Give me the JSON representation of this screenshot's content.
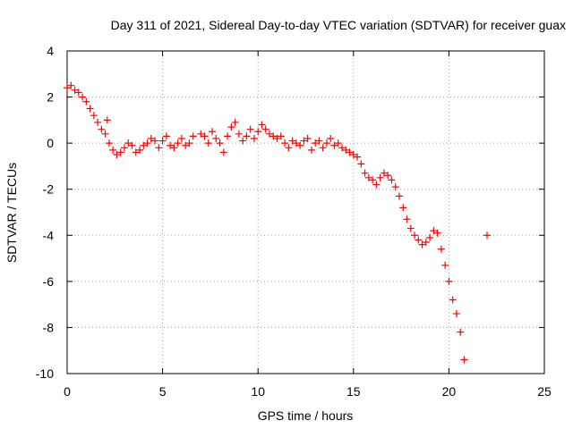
{
  "chart_data": {
    "type": "scatter",
    "title": "Day 311 of 2021, Sidereal Day-to-day VTEC variation (SDTVAR) for receiver guax",
    "xlabel": "GPS time / hours",
    "ylabel": "SDTVAR / TECUs",
    "xlim": [
      0,
      25
    ],
    "ylim": [
      -10,
      4
    ],
    "x_ticks": [
      0,
      5,
      10,
      15,
      20,
      25
    ],
    "y_ticks": [
      -10,
      -8,
      -6,
      -4,
      -2,
      0,
      2,
      4
    ],
    "x_tick_labels": [
      "0",
      "5",
      "10",
      "15",
      "20",
      "25"
    ],
    "y_tick_labels": [
      "-10",
      "-8",
      "-6",
      "-4",
      "-2",
      "0",
      "2",
      "4"
    ],
    "grid": true,
    "marker": "plus",
    "color": "#ff0000",
    "series": [
      {
        "name": "SDTVAR",
        "x": [
          0.0,
          0.2,
          0.4,
          0.6,
          0.8,
          1.0,
          1.2,
          1.4,
          1.6,
          1.8,
          2.0,
          2.1,
          2.2,
          2.4,
          2.6,
          2.8,
          3.0,
          3.2,
          3.4,
          3.6,
          3.8,
          4.0,
          4.2,
          4.4,
          4.6,
          4.8,
          5.0,
          5.2,
          5.4,
          5.6,
          5.8,
          6.0,
          6.2,
          6.4,
          6.6,
          7.0,
          7.2,
          7.4,
          7.6,
          7.8,
          8.0,
          8.2,
          8.4,
          8.6,
          8.8,
          9.0,
          9.2,
          9.4,
          9.6,
          9.8,
          10.0,
          10.2,
          10.4,
          10.6,
          10.8,
          11.0,
          11.2,
          11.4,
          11.6,
          11.8,
          12.0,
          12.2,
          12.4,
          12.6,
          12.8,
          13.0,
          13.2,
          13.4,
          13.6,
          13.8,
          14.0,
          14.2,
          14.4,
          14.6,
          14.8,
          15.0,
          15.2,
          15.4,
          15.6,
          15.8,
          16.0,
          16.2,
          16.4,
          16.6,
          16.8,
          17.0,
          17.2,
          17.4,
          17.6,
          17.8,
          18.0,
          18.2,
          18.4,
          18.6,
          18.8,
          19.0,
          19.2,
          19.4,
          19.6,
          19.8,
          20.0,
          20.2,
          20.4,
          20.6,
          20.8,
          22.0
        ],
        "y": [
          2.4,
          2.5,
          2.3,
          2.2,
          2.0,
          1.8,
          1.5,
          1.2,
          0.9,
          0.6,
          0.4,
          1.0,
          0.0,
          -0.3,
          -0.5,
          -0.4,
          -0.2,
          0.0,
          -0.1,
          -0.4,
          -0.3,
          -0.1,
          0.0,
          0.2,
          0.1,
          -0.2,
          0.1,
          0.3,
          -0.1,
          -0.2,
          0.0,
          0.2,
          -0.1,
          0.0,
          0.3,
          0.4,
          0.3,
          0.0,
          0.5,
          0.2,
          0.0,
          -0.4,
          0.3,
          0.7,
          0.9,
          0.4,
          0.1,
          0.3,
          0.6,
          0.2,
          0.5,
          0.8,
          0.6,
          0.4,
          0.3,
          0.2,
          0.3,
          0.0,
          -0.2,
          0.1,
          0.0,
          -0.1,
          0.1,
          0.2,
          -0.3,
          0.0,
          0.1,
          -0.2,
          0.0,
          0.2,
          -0.1,
          0.0,
          -0.2,
          -0.3,
          -0.4,
          -0.5,
          -0.6,
          -0.9,
          -1.3,
          -1.5,
          -1.6,
          -1.8,
          -1.5,
          -1.3,
          -1.4,
          -1.6,
          -1.9,
          -2.3,
          -2.8,
          -3.3,
          -3.7,
          -4.0,
          -4.2,
          -4.4,
          -4.3,
          -4.1,
          -3.8,
          -3.9,
          -4.6,
          -5.3,
          -6.0,
          -6.8,
          -7.4,
          -8.2,
          -9.4,
          -4.0
        ]
      }
    ]
  }
}
